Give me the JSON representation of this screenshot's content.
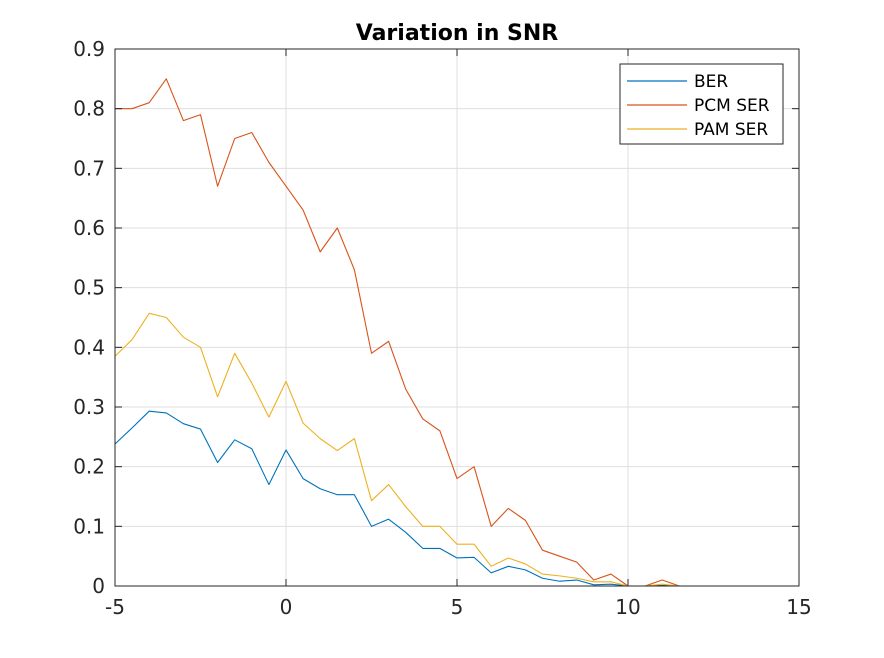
{
  "chart_data": {
    "type": "line",
    "title": "Variation in SNR",
    "xlabel": "",
    "ylabel": "",
    "xlim": [
      -5,
      15
    ],
    "ylim": [
      0,
      0.9
    ],
    "grid": true,
    "legend_position": "top-right",
    "x_ticks": [
      -5,
      0,
      5,
      10,
      15
    ],
    "y_ticks": [
      0,
      0.1,
      0.2,
      0.3,
      0.4,
      0.5,
      0.6,
      0.7,
      0.8,
      0.9
    ],
    "x_tick_labels": [
      "-5",
      "0",
      "5",
      "10",
      "15"
    ],
    "y_tick_labels": [
      "0",
      "0.1",
      "0.2",
      "0.3",
      "0.4",
      "0.5",
      "0.6",
      "0.7",
      "0.8",
      "0.9"
    ],
    "x": [
      -5,
      -4.5,
      -4,
      -3.5,
      -3,
      -2.5,
      -2,
      -1.5,
      -1,
      -0.5,
      0,
      0.5,
      1,
      1.5,
      2,
      2.5,
      3,
      3.5,
      4,
      4.5,
      5,
      5.5,
      6,
      6.5,
      7,
      7.5,
      8,
      8.5,
      9,
      9.5,
      10,
      10.5,
      11,
      11.5,
      12,
      12.5,
      13,
      13.5,
      14,
      14.5,
      15
    ],
    "series": [
      {
        "name": "BER",
        "color": "#0072bd",
        "values": [
          0.238,
          0.265,
          0.293,
          0.29,
          0.272,
          0.263,
          0.207,
          0.245,
          0.23,
          0.17,
          0.228,
          0.18,
          0.163,
          0.153,
          0.153,
          0.1,
          0.112,
          0.09,
          0.063,
          0.063,
          0.047,
          0.048,
          0.022,
          0.033,
          0.027,
          0.013,
          0.008,
          0.01,
          0.002,
          0.003,
          0.0,
          0.0,
          0.001,
          0.0,
          0.0,
          0.0,
          0.0,
          0.0,
          0.0,
          0.0,
          0.0
        ]
      },
      {
        "name": "PCM SER",
        "color": "#d95319",
        "values": [
          0.8,
          0.8,
          0.81,
          0.85,
          0.78,
          0.79,
          0.67,
          0.75,
          0.76,
          0.71,
          0.67,
          0.63,
          0.56,
          0.6,
          0.53,
          0.39,
          0.41,
          0.33,
          0.28,
          0.26,
          0.18,
          0.2,
          0.1,
          0.13,
          0.11,
          0.06,
          0.05,
          0.04,
          0.01,
          0.02,
          0.0,
          0.0,
          0.01,
          0.0,
          0.0,
          0.0,
          0.0,
          0.0,
          0.0,
          0.0,
          0.0
        ]
      },
      {
        "name": "PAM SER",
        "color": "#edb120",
        "values": [
          0.385,
          0.413,
          0.457,
          0.45,
          0.417,
          0.4,
          0.317,
          0.39,
          0.34,
          0.283,
          0.343,
          0.273,
          0.247,
          0.227,
          0.247,
          0.143,
          0.17,
          0.133,
          0.1,
          0.1,
          0.07,
          0.07,
          0.033,
          0.047,
          0.037,
          0.02,
          0.017,
          0.013,
          0.007,
          0.007,
          0.0,
          0.0,
          0.003,
          0.0,
          0.0,
          0.0,
          0.0,
          0.0,
          0.0,
          0.0,
          0.0
        ]
      }
    ]
  }
}
